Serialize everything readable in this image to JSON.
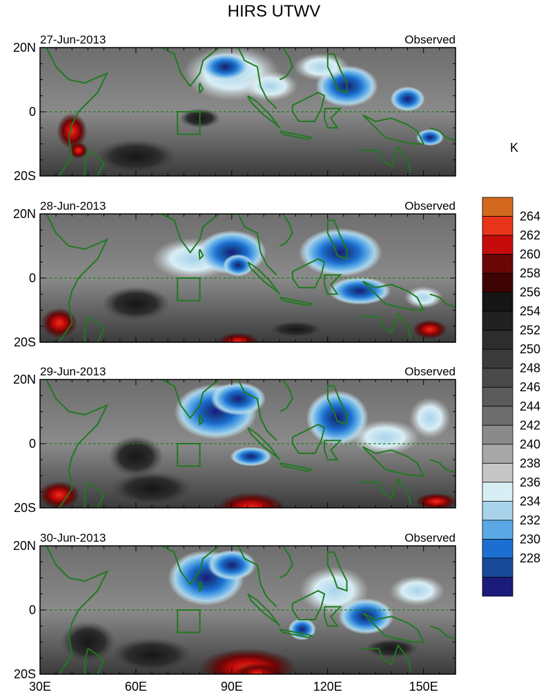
{
  "chart_data": {
    "type": "heatmap",
    "title": "HIRS UTWV",
    "units": "K",
    "x_tick_labels": [
      "30E",
      "60E",
      "90E",
      "120E",
      "150E"
    ],
    "x_tick_values": [
      30,
      60,
      90,
      120,
      150
    ],
    "y_tick_labels": [
      "20N",
      "0",
      "20S"
    ],
    "y_tick_values": [
      20,
      0,
      -20
    ],
    "xlim": [
      30,
      160
    ],
    "ylim": [
      -20,
      20
    ],
    "panels": [
      {
        "date": "27-Jun-2013",
        "label": "Observed"
      },
      {
        "date": "28-Jun-2013",
        "label": "Observed"
      },
      {
        "date": "29-Jun-2013",
        "label": "Observed"
      },
      {
        "date": "30-Jun-2013",
        "label": "Observed"
      }
    ],
    "colorbar": {
      "levels": [
        264,
        262,
        260,
        258,
        256,
        254,
        252,
        250,
        248,
        246,
        244,
        242,
        240,
        238,
        236,
        234,
        232,
        230,
        228
      ],
      "colors": [
        "#d2691e",
        "#e8341a",
        "#c60b0b",
        "#6a0606",
        "#3e0404",
        "#161616",
        "#212121",
        "#2d2d2d",
        "#3b3b3b",
        "#4a4a4a",
        "#5b5b5b",
        "#6e6e6e",
        "#8a8a8a",
        "#a8a8a8",
        "#c6c6c6",
        "#d8eef5",
        "#a9d3ea",
        "#5aa9e6",
        "#1c6fd0",
        "#174b99",
        "#1b1b7c"
      ]
    }
  }
}
